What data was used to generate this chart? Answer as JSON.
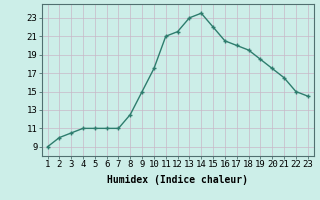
{
  "x": [
    1,
    2,
    3,
    4,
    5,
    6,
    7,
    8,
    9,
    10,
    11,
    12,
    13,
    14,
    15,
    16,
    17,
    18,
    19,
    20,
    21,
    22,
    23
  ],
  "y": [
    9,
    10,
    10.5,
    11,
    11,
    11,
    11,
    12.5,
    15,
    17.5,
    21,
    21.5,
    23,
    23.5,
    22,
    20.5,
    20,
    19.5,
    18.5,
    17.5,
    16.5,
    15,
    14.5
  ],
  "line_color": "#2e7d6e",
  "marker": "+",
  "bg_color": "#cceee8",
  "grid_color_v": "#c8b8c8",
  "grid_color_h": "#c8b8c8",
  "xlabel": "Humidex (Indice chaleur)",
  "ylabel_ticks": [
    9,
    11,
    13,
    15,
    17,
    19,
    21,
    23
  ],
  "ylim": [
    8.0,
    24.5
  ],
  "xlim": [
    0.5,
    23.5
  ],
  "xlabel_fontsize": 7,
  "tick_fontsize": 6.5,
  "line_width": 1.0,
  "marker_size": 3,
  "marker_edge_width": 1.0
}
